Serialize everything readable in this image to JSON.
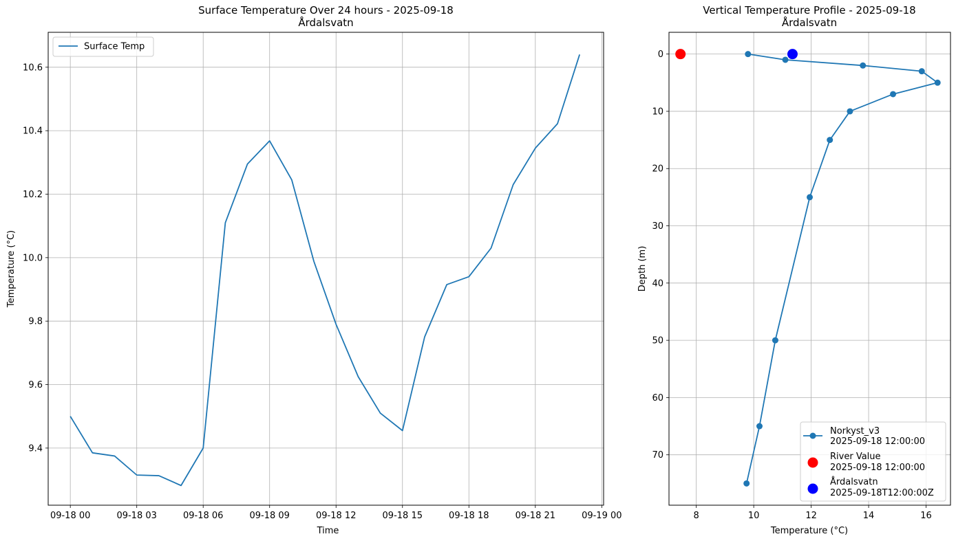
{
  "chart_data": [
    {
      "type": "line",
      "title": "Surface Temperature Over 24 hours - 2025-09-18",
      "subtitle": "Årdalsvatn",
      "xlabel": "Time",
      "ylabel": "Temperature (°C)",
      "grid": true,
      "legend_position": "top-left",
      "xlim": [
        "2025-09-17 23:00",
        "2025-09-19 00:05"
      ],
      "ylim": [
        9.22,
        10.71
      ],
      "x_ticks": [
        "2025-09-18 00:00",
        "2025-09-18 03:00",
        "2025-09-18 06:00",
        "2025-09-18 09:00",
        "2025-09-18 12:00",
        "2025-09-18 15:00",
        "2025-09-18 18:00",
        "2025-09-18 21:00",
        "2025-09-19 00:00"
      ],
      "x_tick_labels": [
        "09-18 00",
        "09-18 03",
        "09-18 06",
        "09-18 09",
        "09-18 12",
        "09-18 15",
        "09-18 18",
        "09-18 21",
        "09-19 00"
      ],
      "y_ticks": [
        9.4,
        9.6,
        9.8,
        10.0,
        10.2,
        10.4,
        10.6
      ],
      "y_tick_labels": [
        "9.4",
        "9.6",
        "9.8",
        "10.0",
        "10.2",
        "10.4",
        "10.6"
      ],
      "series": [
        {
          "name": "Surface Temp",
          "color": "#1f77b4",
          "x": [
            "2025-09-18 00:00",
            "2025-09-18 01:00",
            "2025-09-18 02:00",
            "2025-09-18 03:00",
            "2025-09-18 04:00",
            "2025-09-18 05:00",
            "2025-09-18 06:00",
            "2025-09-18 07:00",
            "2025-09-18 08:00",
            "2025-09-18 09:00",
            "2025-09-18 10:00",
            "2025-09-18 11:00",
            "2025-09-18 12:00",
            "2025-09-18 13:00",
            "2025-09-18 14:00",
            "2025-09-18 15:00",
            "2025-09-18 16:00",
            "2025-09-18 17:00",
            "2025-09-18 18:00",
            "2025-09-18 19:00",
            "2025-09-18 20:00",
            "2025-09-18 21:00",
            "2025-09-18 22:00",
            "2025-09-18 23:00"
          ],
          "y": [
            9.5,
            9.385,
            9.375,
            9.315,
            9.313,
            9.282,
            9.4,
            10.11,
            10.295,
            10.368,
            10.245,
            9.988,
            9.79,
            9.625,
            9.51,
            9.455,
            9.75,
            9.915,
            9.94,
            10.03,
            10.23,
            10.345,
            10.422,
            10.64
          ]
        }
      ]
    },
    {
      "type": "line",
      "title": "Vertical Temperature Profile - 2025-09-18",
      "subtitle": "Årdalsvatn",
      "xlabel": "Temperature (°C)",
      "ylabel": "Depth (m)",
      "grid": true,
      "legend_position": "bottom-right",
      "xlim": [
        7.05,
        16.85
      ],
      "ylim": [
        78.8,
        -3.8
      ],
      "y_inverted": true,
      "x_ticks": [
        8,
        10,
        12,
        14,
        16
      ],
      "x_tick_labels": [
        "8",
        "10",
        "12",
        "14",
        "16"
      ],
      "y_ticks": [
        0,
        10,
        20,
        30,
        40,
        50,
        60,
        70
      ],
      "y_tick_labels": [
        "0",
        "10",
        "20",
        "30",
        "40",
        "50",
        "60",
        "70"
      ],
      "series": [
        {
          "name": "Norkyst_v3",
          "name_line2": "2025-09-18 12:00:00",
          "color": "#1f77b4",
          "x": [
            9.8,
            11.1,
            13.8,
            15.85,
            16.4,
            14.85,
            13.35,
            12.65,
            11.95,
            10.75,
            10.2,
            9.75
          ],
          "y": [
            0,
            1,
            2,
            3,
            5,
            7,
            10,
            15,
            25,
            50,
            65,
            75
          ]
        },
        {
          "name": "River Value",
          "name_line2": "2025-09-18 12:00:00",
          "color": "#ff0000",
          "x": [
            7.45
          ],
          "y": [
            0
          ]
        },
        {
          "name": "Årdalsvatn",
          "name_line2": "2025-09-18T12:00:00Z",
          "color": "#0000ff",
          "x": [
            11.35
          ],
          "y": [
            0
          ]
        }
      ]
    }
  ]
}
